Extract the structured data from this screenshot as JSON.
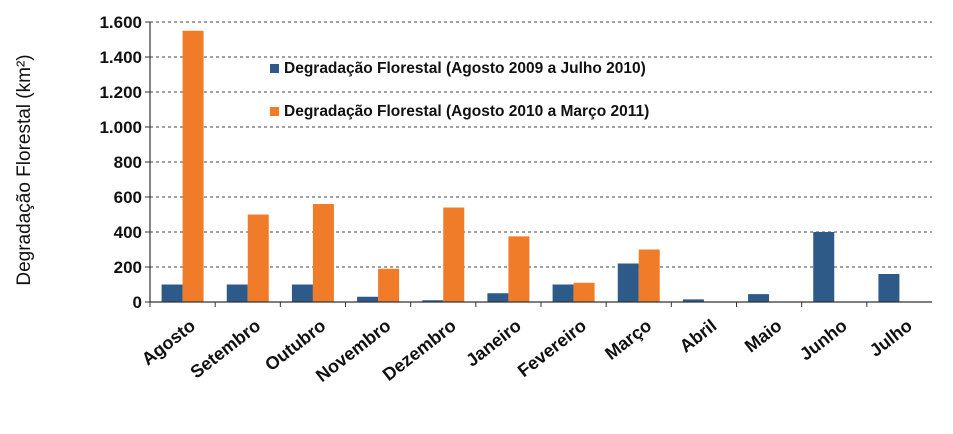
{
  "chart_data": {
    "type": "bar",
    "title": "",
    "xlabel": "",
    "ylabel": "Degradação Florestal (km²)",
    "ylim": [
      0,
      1600
    ],
    "yticks": [
      0,
      200,
      400,
      600,
      800,
      1000,
      1200,
      1400,
      1600
    ],
    "ytick_labels": [
      "0",
      "200",
      "400",
      "600",
      "800",
      "1.000",
      "1.200",
      "1.400",
      "1.600"
    ],
    "grid": "horizontal-dashed",
    "legend_position": "top-center",
    "categories": [
      "Agosto",
      "Setembro",
      "Outubro",
      "Novembro",
      "Dezembro",
      "Janeiro",
      "Fevereiro",
      "Março",
      "Abril",
      "Maio",
      "Junho",
      "Julho"
    ],
    "series": [
      {
        "name": "Degradação Florestal (Agosto 2009 a Julho 2010)",
        "color": "#2E5A8A",
        "values": [
          100,
          100,
          100,
          30,
          10,
          50,
          100,
          220,
          15,
          45,
          400,
          160
        ]
      },
      {
        "name": "Degradação Florestal (Agosto 2010 a Março 2011)",
        "color": "#F07C2A",
        "values": [
          1550,
          500,
          560,
          190,
          540,
          375,
          110,
          300,
          null,
          null,
          null,
          null
        ]
      }
    ]
  }
}
